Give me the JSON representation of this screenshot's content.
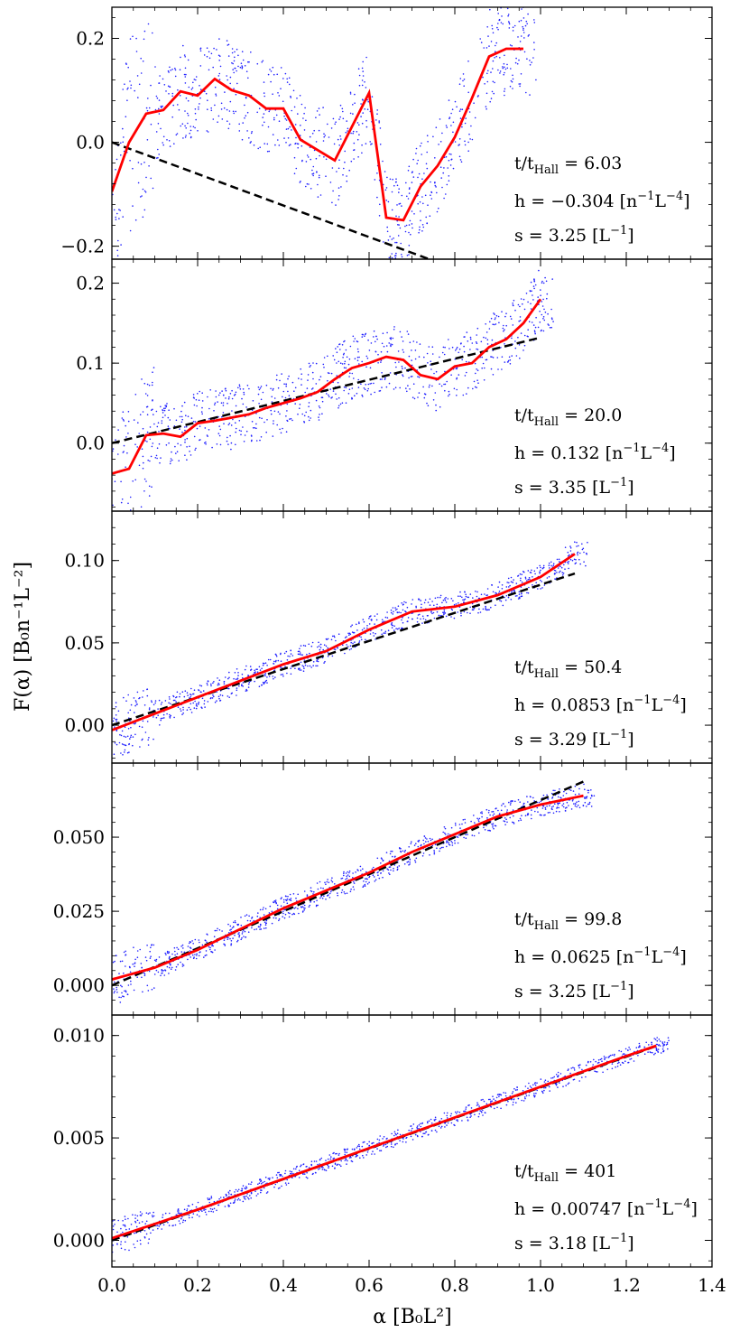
{
  "chart_data": {
    "type": "scatter",
    "xlabel": "α [B₀L²]",
    "ylabel": "F(α) [B₀n⁻¹L⁻²]",
    "xlim": [
      0.0,
      1.4
    ],
    "xticks": [
      "0.0",
      "0.2",
      "0.4",
      "0.6",
      "0.8",
      "1.0",
      "1.2",
      "1.4"
    ],
    "xtick_values": [
      0.0,
      0.2,
      0.4,
      0.6,
      0.8,
      1.0,
      1.2,
      1.4
    ],
    "legend": "none",
    "grid": false,
    "panels": [
      {
        "ylim": [
          -0.225,
          0.26
        ],
        "yticks": [
          "−0.2",
          "0.0",
          "0.2"
        ],
        "ytick_values": [
          -0.2,
          0.0,
          0.2
        ],
        "annotations": {
          "time": "t/t",
          "time_sub": "Hall",
          "time_value": " = 6.03",
          "h": "h = −0.304 [n",
          "h_unit1": "−1",
          "h_mid": "L",
          "h_unit2": "−4",
          "h_end": "]",
          "s": "s = 3.25 [L",
          "s_unit": "−1",
          "s_end": "]"
        },
        "fit_slope": -0.304,
        "fit_intercept": 0.0,
        "fit_x_range": [
          0.0,
          1.0
        ],
        "binned_mean": {
          "x": [
            0.0,
            0.04,
            0.08,
            0.12,
            0.16,
            0.2,
            0.24,
            0.28,
            0.32,
            0.36,
            0.4,
            0.44,
            0.48,
            0.52,
            0.56,
            0.6,
            0.64,
            0.68,
            0.72,
            0.76,
            0.8,
            0.84,
            0.88,
            0.92,
            0.96
          ],
          "y": [
            -0.095,
            0.0,
            0.055,
            0.062,
            0.098,
            0.09,
            0.122,
            0.1,
            0.09,
            0.065,
            0.065,
            0.005,
            -0.015,
            -0.035,
            0.03,
            0.095,
            -0.145,
            -0.15,
            -0.085,
            -0.045,
            0.01,
            0.085,
            0.165,
            0.18,
            0.18
          ]
        },
        "scatter_spread": 0.09
      },
      {
        "ylim": [
          -0.085,
          0.23
        ],
        "yticks": [
          "0.0",
          "0.1",
          "0.2"
        ],
        "ytick_values": [
          0.0,
          0.1,
          0.2
        ],
        "annotations": {
          "time": "t/t",
          "time_sub": "Hall",
          "time_value": " = 20.0",
          "h": "h = 0.132 [n",
          "h_unit1": "−1",
          "h_mid": "L",
          "h_unit2": "−4",
          "h_end": "]",
          "s": "s = 3.35 [L",
          "s_unit": "−1",
          "s_end": "]"
        },
        "fit_slope": 0.132,
        "fit_intercept": 0.0,
        "fit_x_range": [
          0.0,
          1.0
        ],
        "binned_mean": {
          "x": [
            0.0,
            0.04,
            0.08,
            0.12,
            0.16,
            0.2,
            0.24,
            0.28,
            0.32,
            0.36,
            0.4,
            0.44,
            0.48,
            0.52,
            0.56,
            0.6,
            0.64,
            0.68,
            0.72,
            0.76,
            0.8,
            0.84,
            0.88,
            0.92,
            0.96,
            1.0
          ],
          "y": [
            -0.038,
            -0.032,
            0.01,
            0.012,
            0.008,
            0.025,
            0.028,
            0.032,
            0.036,
            0.044,
            0.05,
            0.056,
            0.064,
            0.08,
            0.094,
            0.1,
            0.108,
            0.104,
            0.085,
            0.08,
            0.096,
            0.1,
            0.12,
            0.13,
            0.15,
            0.18
          ]
        },
        "scatter_spread": 0.04
      },
      {
        "ylim": [
          -0.023,
          0.13
        ],
        "yticks": [
          "0.00",
          "0.05",
          "0.10"
        ],
        "ytick_values": [
          0.0,
          0.05,
          0.1
        ],
        "annotations": {
          "time": "t/t",
          "time_sub": "Hall",
          "time_value": " = 50.4",
          "h": "h = 0.0853 [n",
          "h_unit1": "−1",
          "h_mid": "L",
          "h_unit2": "−4",
          "h_end": "]",
          "s": "s = 3.29 [L",
          "s_unit": "−1",
          "s_end": "]"
        },
        "fit_slope": 0.0853,
        "fit_intercept": 0.0,
        "fit_x_range": [
          0.0,
          1.08
        ],
        "binned_mean": {
          "x": [
            0.0,
            0.1,
            0.2,
            0.3,
            0.4,
            0.5,
            0.6,
            0.7,
            0.8,
            0.9,
            1.0,
            1.08
          ],
          "y": [
            -0.003,
            0.007,
            0.017,
            0.027,
            0.037,
            0.045,
            0.058,
            0.069,
            0.072,
            0.079,
            0.09,
            0.104
          ]
        },
        "scatter_spread": 0.008
      },
      {
        "ylim": [
          -0.01,
          0.075
        ],
        "yticks": [
          "0.000",
          "0.025",
          "0.050"
        ],
        "ytick_values": [
          0.0,
          0.025,
          0.05
        ],
        "annotations": {
          "time": "t/t",
          "time_sub": "Hall",
          "time_value": " = 99.8",
          "h": "h = 0.0625 [n",
          "h_unit1": "−1",
          "h_mid": "L",
          "h_unit2": "−4",
          "h_end": "]",
          "s": "s = 3.25 [L",
          "s_unit": "−1",
          "s_end": "]"
        },
        "fit_slope": 0.0625,
        "fit_intercept": 0.0,
        "fit_x_range": [
          0.0,
          1.1
        ],
        "binned_mean": {
          "x": [
            0.0,
            0.1,
            0.2,
            0.3,
            0.4,
            0.5,
            0.6,
            0.7,
            0.8,
            0.9,
            1.0,
            1.1
          ],
          "y": [
            0.002,
            0.006,
            0.012,
            0.019,
            0.026,
            0.032,
            0.038,
            0.045,
            0.051,
            0.057,
            0.061,
            0.064
          ]
        },
        "scatter_spread": 0.004
      },
      {
        "ylim": [
          -0.0013,
          0.011
        ],
        "yticks": [
          "0.000",
          "0.005",
          "0.010"
        ],
        "ytick_values": [
          0.0,
          0.005,
          0.01
        ],
        "annotations": {
          "time": "t/t",
          "time_sub": "Hall",
          "time_value": " = 401",
          "h": "h = 0.00747 [n",
          "h_unit1": "−1",
          "h_mid": "L",
          "h_unit2": "−4",
          "h_end": "]",
          "s": "s = 3.18 [L",
          "s_unit": "−1",
          "s_end": "]"
        },
        "fit_slope": 0.00747,
        "fit_intercept": 0.0,
        "fit_x_range": [
          0.0,
          1.27
        ],
        "binned_mean": {
          "x": [
            0.0,
            0.2,
            0.4,
            0.6,
            0.8,
            1.0,
            1.2,
            1.27
          ],
          "y": [
            0.0001,
            0.0015,
            0.003,
            0.0045,
            0.006,
            0.0075,
            0.009,
            0.0095
          ]
        },
        "scatter_spread": 0.0004
      }
    ]
  },
  "colors": {
    "scatter": "#1f1fff",
    "mean_line": "#ff0000",
    "fit_line": "#000000"
  }
}
